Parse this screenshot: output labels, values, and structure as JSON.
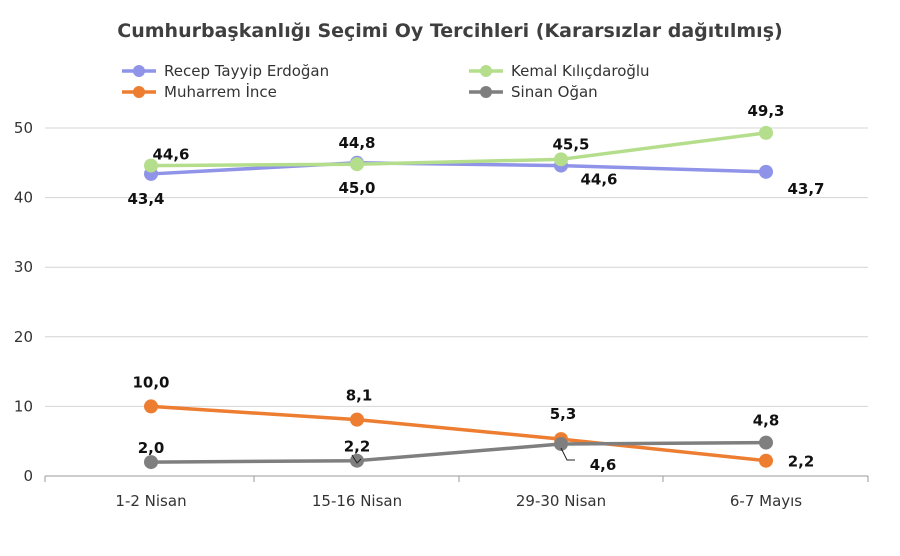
{
  "chart_data": {
    "type": "line",
    "title": "Cumhurbaşkanlığı Seçimi Oy Tercihleri (Kararsızlar dağıtılmış)",
    "categories": [
      "1-2 Nisan",
      "15-16 Nisan",
      "29-30 Nisan",
      "6-7 Mayıs"
    ],
    "ylim": [
      0,
      50
    ],
    "yticks": [
      0,
      10,
      20,
      30,
      40,
      50
    ],
    "grid": true,
    "legend": "top",
    "series": [
      {
        "name": "Recep Tayyip Erdoğan",
        "color": "#8f94e8",
        "values": [
          43.4,
          45.0,
          44.6,
          43.7
        ],
        "labels": [
          "43,4",
          "45,0",
          "44,6",
          "43,7"
        ]
      },
      {
        "name": "Kemal Kılıçdaroğlu",
        "color": "#b5de8c",
        "values": [
          44.6,
          44.8,
          45.5,
          49.3
        ],
        "labels": [
          "44,6",
          "44,8",
          "45,5",
          "49,3"
        ]
      },
      {
        "name": "Muharrem İnce",
        "color": "#ed7d31",
        "values": [
          10.0,
          8.1,
          5.3,
          2.2
        ],
        "labels": [
          "10,0",
          "8,1",
          "5,3",
          "2,2"
        ]
      },
      {
        "name": "Sinan Oğan",
        "color": "#7f7f7f",
        "values": [
          2.0,
          2.2,
          4.6,
          4.8
        ],
        "labels": [
          "2,0",
          "2,2",
          "4,6",
          "4,8"
        ]
      }
    ]
  }
}
